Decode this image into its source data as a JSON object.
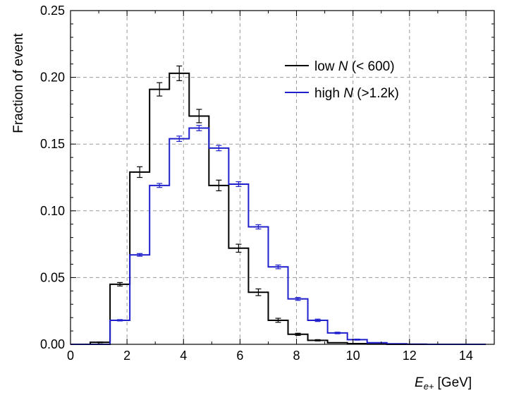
{
  "chart_data": {
    "type": "line",
    "title": "",
    "xlabel_main": "E",
    "xlabel_sub": "e+",
    "xlabel_unit": "[GeV]",
    "ylabel": "Fraction of event",
    "xlim": [
      0,
      15
    ],
    "ylim": [
      0,
      0.25
    ],
    "xticks": [
      0,
      2,
      4,
      6,
      8,
      10,
      12,
      14
    ],
    "xtick_labels": [
      "0",
      "2",
      "4",
      "6",
      "8",
      "10",
      "12",
      "14"
    ],
    "yticks": [
      0,
      0.05,
      0.1,
      0.15,
      0.2,
      0.25
    ],
    "ytick_labels": [
      "0.00",
      "0.05",
      "0.10",
      "0.15",
      "0.20",
      "0.25"
    ],
    "grid": true,
    "legend_position": "top-right",
    "bin_edges": [
      0.0,
      0.7,
      1.4,
      2.1,
      2.8,
      3.5,
      4.2,
      4.9,
      5.6,
      6.3,
      7.0,
      7.7,
      8.4,
      9.1,
      9.8,
      10.5,
      11.2,
      11.9,
      12.6,
      13.3,
      14.0,
      14.7
    ],
    "series": [
      {
        "name_prefix": "low ",
        "name_italic": "N",
        "name_suffix": " (< 600)",
        "color": "#000000",
        "values": [
          0.0,
          0.0015,
          0.045,
          0.129,
          0.191,
          0.203,
          0.171,
          0.119,
          0.072,
          0.039,
          0.018,
          0.0075,
          0.003,
          0.0012,
          0.0005,
          0.0002,
          0.0,
          0.0,
          0.0,
          0.0,
          0.0
        ],
        "errors": [
          0.0,
          0.0003,
          0.0013,
          0.004,
          0.005,
          0.0055,
          0.005,
          0.004,
          0.003,
          0.0025,
          0.0015,
          0.0008,
          0.0005,
          0.0,
          0.0,
          0.0,
          0.0,
          0.0,
          0.0,
          0.0,
          0.0
        ]
      },
      {
        "name_prefix": "high ",
        "name_italic": "N",
        "name_suffix": " (>1.2k)",
        "color": "#1f1fcc",
        "values": [
          0.0,
          0.0,
          0.018,
          0.067,
          0.119,
          0.154,
          0.162,
          0.147,
          0.12,
          0.088,
          0.058,
          0.034,
          0.018,
          0.0085,
          0.0035,
          0.0012,
          0.0004,
          0.0001,
          0.0,
          0.0,
          0.0
        ],
        "errors": [
          0.0,
          0.0,
          0.0005,
          0.001,
          0.0015,
          0.002,
          0.002,
          0.002,
          0.0018,
          0.0016,
          0.0014,
          0.0011,
          0.0009,
          0.0006,
          0.0004,
          0.0,
          0.0,
          0.0,
          0.0,
          0.0,
          0.0
        ]
      }
    ]
  }
}
